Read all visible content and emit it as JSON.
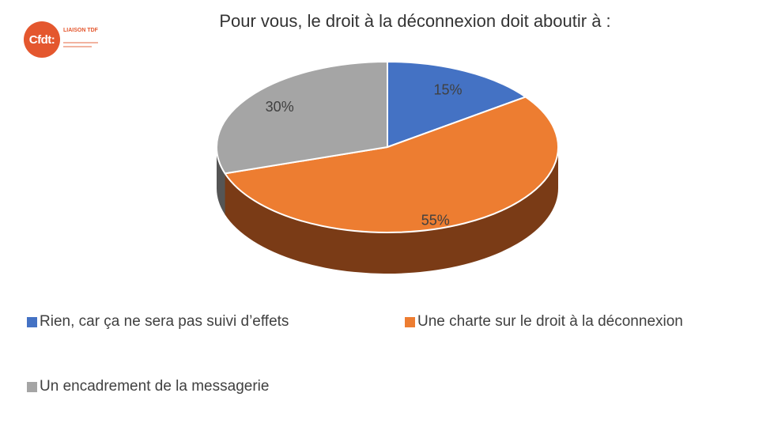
{
  "logo": {
    "mark_text": "Cfdt:",
    "tagline": "LIAISON TDF",
    "color": "#e4572e"
  },
  "chart_data": {
    "type": "pie",
    "title": "Pour vous, le droit à la déconnexion doit aboutir à :",
    "categories": [
      "Rien, car ça ne sera pas suivi d’effets",
      "Une charte sur le droit à la déconnexion",
      "Un encadrement de la messagerie"
    ],
    "values": [
      15,
      55,
      30
    ],
    "data_labels": [
      "15%",
      "55%",
      "30%"
    ],
    "colors": [
      "#4472c4",
      "#ed7d31",
      "#a5a5a5"
    ],
    "side_colors": [
      "#2f4f8a",
      "#7a3b16",
      "#555555"
    ],
    "style": "3d",
    "legend_position": "bottom"
  }
}
